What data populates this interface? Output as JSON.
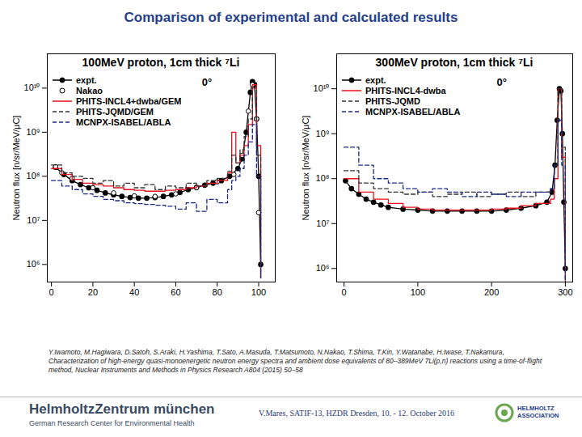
{
  "page": {
    "title": "Comparison of experimental and calculated results",
    "citation": "Y.Iwamoto, M.Hagiwara, D.Satoh, S.Araki, H.Yashima, T.Sato, A.Masuda, T.Matsumoto, N.Nakao, T.Shima, T.Kin, Y.Watanabe, H.Iwase, T.Nakamura, Characterization of high-energy quasi-monoenergetic neutron energy spectra and ambient dose equivalents of 80–389MeV 7Li(p,n) reactions using a time-of-flight method, Nuclear Instruments and Methods in Physics Research A804 (2015) 50–58",
    "footer": {
      "org": "HelmholtzZentrum münchen",
      "org_sub": "German Research Center for Environmental Health",
      "talk": "V.Mares, SATIF-13, HZDR Dresden, 10. - 12. October 2016",
      "association": [
        "HELMHOLTZ",
        "ASSOCIATION"
      ]
    }
  },
  "chart_data": [
    {
      "type": "line",
      "title": "100MeV proton, 1cm thick ⁷Li",
      "annotations": [
        "0°"
      ],
      "y_label": "Neutron flux [n/sr/MeV/μC]",
      "log": "y",
      "grid": false,
      "legend": "top-left",
      "xlim": [
        -2,
        108
      ],
      "xticks": [
        0,
        20,
        40,
        60,
        80,
        100
      ],
      "ylim": [
        400000,
        60000000000
      ],
      "yticks": [
        {
          "value": 1000000,
          "label": "10⁶"
        },
        {
          "value": 10000000,
          "label": "10⁷"
        },
        {
          "value": 100000000,
          "label": "10⁸"
        },
        {
          "value": 1000000000,
          "label": "10⁹"
        },
        {
          "value": 10000000000,
          "label": "10¹⁰"
        }
      ],
      "series": [
        {
          "name": "expt.",
          "type": "line",
          "color": "#000000",
          "marker": "circle",
          "line_style": "solid",
          "x": [
            2,
            6,
            10,
            14,
            18,
            22,
            26,
            30,
            34,
            38,
            42,
            46,
            50,
            54,
            58,
            62,
            66,
            70,
            74,
            78,
            82,
            86,
            90,
            92,
            94,
            96,
            97,
            98,
            99,
            100,
            101
          ],
          "values": [
            160000000,
            110000000,
            80000000,
            65000000,
            55000000,
            48000000,
            42000000,
            38000000,
            35000000,
            33000000,
            32000000,
            32000000,
            33000000,
            35000000,
            38000000,
            43000000,
            50000000,
            56000000,
            63000000,
            70000000,
            80000000,
            100000000,
            150000000,
            250000000,
            1000000000,
            8000000000,
            14000000000,
            12000000000,
            2000000000,
            100000000,
            1000000
          ]
        },
        {
          "name": "Nakao",
          "type": "line",
          "color": "#000000",
          "marker": "open circle",
          "line_style": "none",
          "x": [
            2,
            5,
            10,
            20,
            30,
            40,
            50,
            60,
            70,
            80,
            88,
            92,
            95,
            97,
            99,
            100
          ],
          "values": [
            165000000,
            120000000,
            90000000,
            55000000,
            42000000,
            36000000,
            35000000,
            40000000,
            55000000,
            75000000,
            110000000,
            300000000,
            3000000000,
            12000000000,
            2000000000,
            15000000
          ]
        },
        {
          "name": "PHITS-INCL4+dwba/GEM",
          "type": "step",
          "color": "#e8101a",
          "marker": "none",
          "line_style": "solid",
          "x": [
            0,
            5,
            10,
            15,
            20,
            25,
            30,
            35,
            40,
            45,
            50,
            55,
            60,
            65,
            70,
            75,
            80,
            85,
            87,
            89,
            91,
            93,
            95,
            97,
            99,
            101
          ],
          "values": [
            150000000,
            110000000,
            85000000,
            70000000,
            65000000,
            60000000,
            55000000,
            50000000,
            48000000,
            46000000,
            46000000,
            48000000,
            50000000,
            55000000,
            60000000,
            70000000,
            80000000,
            120000000,
            1000000000,
            200000000,
            300000000,
            500000000,
            1500000000,
            12000000000,
            500000000,
            500000
          ]
        },
        {
          "name": "PHITS-JQMD/GEM",
          "type": "step",
          "color": "#333333",
          "marker": "none",
          "line_style": "dashed",
          "x": [
            0,
            5,
            10,
            15,
            20,
            25,
            30,
            35,
            40,
            45,
            50,
            55,
            60,
            65,
            70,
            75,
            80,
            85,
            87,
            89,
            91,
            93,
            95,
            97,
            99,
            101
          ],
          "values": [
            180000000,
            120000000,
            100000000,
            90000000,
            70000000,
            80000000,
            60000000,
            70000000,
            55000000,
            65000000,
            50000000,
            60000000,
            55000000,
            70000000,
            60000000,
            80000000,
            90000000,
            130000000,
            300000000,
            200000000,
            400000000,
            800000000,
            2000000000,
            10000000000,
            300000000,
            500000
          ]
        },
        {
          "name": "MCNPX-ISABEL/ABLA",
          "type": "step",
          "color": "#1a2a8c",
          "marker": "none",
          "line_style": "dashed",
          "x": [
            0,
            5,
            10,
            15,
            20,
            25,
            30,
            35,
            40,
            45,
            50,
            55,
            60,
            65,
            70,
            75,
            80,
            85,
            87,
            89,
            91,
            93,
            95,
            97,
            99,
            101
          ],
          "values": [
            80000000,
            60000000,
            50000000,
            40000000,
            35000000,
            30000000,
            28000000,
            25000000,
            24000000,
            23000000,
            22000000,
            21000000,
            18000000,
            25000000,
            16000000,
            30000000,
            25000000,
            50000000,
            80000000,
            100000000,
            150000000,
            300000000,
            600000000,
            1500000000,
            100000000,
            500000
          ]
        }
      ]
    },
    {
      "type": "line",
      "title": "300MeV proton, 1cm thick ⁷Li",
      "annotations": [
        "0°"
      ],
      "y_label": "Neutron flux [n/sr/MeV/μC]",
      "log": "y",
      "grid": false,
      "legend": "top-left",
      "xlim": [
        -10,
        310
      ],
      "xticks": [
        0,
        100,
        200,
        300
      ],
      "ylim": [
        500000,
        60000000000
      ],
      "yticks": [
        {
          "value": 1000000,
          "label": "10⁶"
        },
        {
          "value": 10000000,
          "label": "10⁷"
        },
        {
          "value": 100000000,
          "label": "10⁸"
        },
        {
          "value": 1000000000,
          "label": "10⁹"
        },
        {
          "value": 10000000000,
          "label": "10¹⁰"
        }
      ],
      "series": [
        {
          "name": "expt.",
          "type": "line",
          "color": "#000000",
          "marker": "circle",
          "line_style": "solid",
          "x": [
            2,
            10,
            20,
            30,
            40,
            50,
            60,
            80,
            100,
            120,
            140,
            160,
            180,
            200,
            220,
            240,
            260,
            275,
            282,
            286,
            289,
            292,
            294,
            296,
            298,
            300
          ],
          "values": [
            90000000,
            60000000,
            45000000,
            35000000,
            30000000,
            26000000,
            23000000,
            21000000,
            20000000,
            19000000,
            19000000,
            19000000,
            19000000,
            19000000,
            20000000,
            22000000,
            25000000,
            30000000,
            50000000,
            200000000,
            2000000000,
            10000000000,
            9000000000,
            1000000000,
            30000000,
            1000000
          ]
        },
        {
          "name": "PHITS-INCL4-dwba",
          "type": "step",
          "color": "#e8101a",
          "marker": "none",
          "line_style": "solid",
          "x": [
            0,
            20,
            40,
            60,
            80,
            100,
            120,
            140,
            160,
            180,
            200,
            220,
            240,
            260,
            280,
            285,
            290,
            295,
            300
          ],
          "values": [
            100000000,
            50000000,
            35000000,
            28000000,
            23000000,
            21000000,
            20000000,
            20000000,
            20000000,
            20000000,
            21000000,
            22000000,
            25000000,
            28000000,
            35000000,
            100000000,
            10000000000,
            300000000,
            500000
          ]
        },
        {
          "name": "PHITS-JQMD",
          "type": "step",
          "color": "#333333",
          "marker": "none",
          "line_style": "dashed",
          "x": [
            0,
            20,
            40,
            60,
            80,
            100,
            120,
            140,
            160,
            180,
            200,
            220,
            240,
            260,
            280,
            285,
            290,
            295,
            300
          ],
          "values": [
            150000000,
            80000000,
            60000000,
            50000000,
            45000000,
            50000000,
            40000000,
            45000000,
            50000000,
            40000000,
            45000000,
            50000000,
            40000000,
            50000000,
            60000000,
            200000000,
            10000000000,
            500000000,
            500000
          ]
        },
        {
          "name": "MCNPX-ISABEL/ABLA",
          "type": "step",
          "color": "#1a2a8c",
          "marker": "none",
          "line_style": "dashed",
          "x": [
            0,
            20,
            40,
            60,
            80,
            100,
            120,
            140,
            160,
            180,
            200,
            220,
            240,
            260,
            280,
            285,
            290,
            295,
            300
          ],
          "values": [
            500000000,
            200000000,
            100000000,
            80000000,
            60000000,
            50000000,
            60000000,
            50000000,
            40000000,
            50000000,
            45000000,
            40000000,
            50000000,
            50000000,
            60000000,
            200000000,
            2000000000,
            200000000,
            500000
          ]
        }
      ]
    }
  ]
}
